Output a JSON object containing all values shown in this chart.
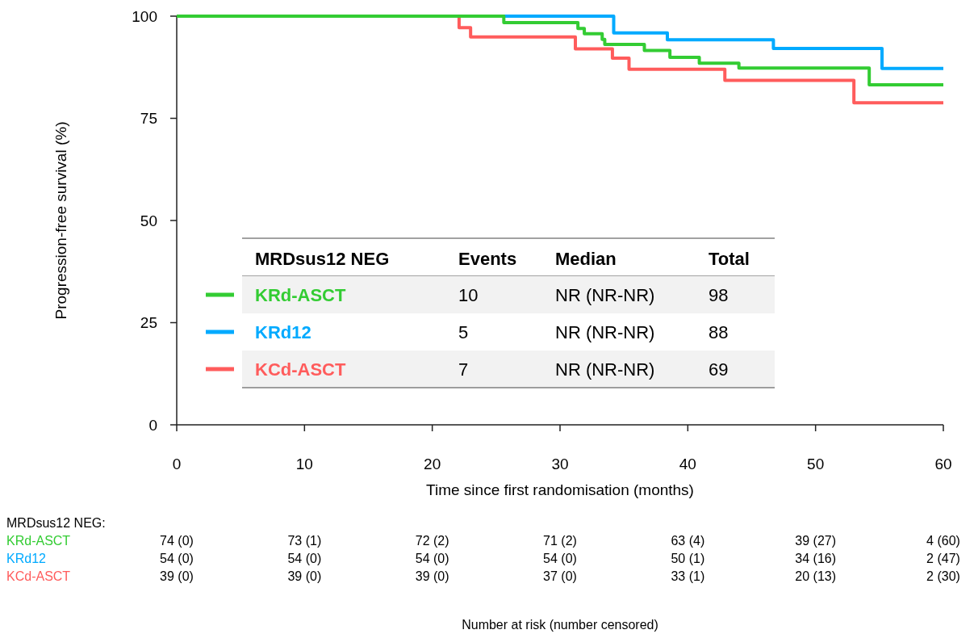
{
  "chart_data": {
    "type": "step",
    "xlabel": "Time since first randomisation (months)",
    "ylabel": "Progression-free survival (%)",
    "xlim": [
      0,
      60
    ],
    "ylim": [
      0,
      100
    ],
    "xticks": [
      0,
      10,
      20,
      30,
      40,
      50,
      60
    ],
    "yticks": [
      0,
      25,
      50,
      75,
      100
    ],
    "grid": false,
    "legend": "bottom",
    "series": [
      {
        "name": "KRd-ASCT",
        "color": "#33cc33",
        "x": [
          0,
          25.6,
          31.4,
          31.9,
          33.3,
          33.5,
          36.6,
          38.6,
          40.9,
          44.0,
          54.2,
          60
        ],
        "values": [
          100,
          98.4,
          97.0,
          95.7,
          94.3,
          93.1,
          91.6,
          89.9,
          88.5,
          87.3,
          83.2,
          83.2
        ]
      },
      {
        "name": "KRd12",
        "color": "#00aaff",
        "x": [
          0,
          34.2,
          38.4,
          46.7,
          55.2,
          60
        ],
        "values": [
          100,
          95.9,
          94.2,
          92.1,
          87.2,
          87.2
        ]
      },
      {
        "name": "KCd-ASCT",
        "color": "#ff5c5c",
        "x": [
          0,
          22.1,
          23.0,
          31.2,
          34.1,
          35.4,
          42.9,
          53.0,
          60
        ],
        "values": [
          100,
          97.2,
          94.9,
          92.0,
          89.7,
          87.0,
          84.3,
          78.8,
          78.8
        ]
      }
    ],
    "annotations": [
      "MRDsus12 NEG",
      "Events",
      "Median",
      "Total",
      "10",
      "NR (NR-NR)",
      "98",
      "5",
      "NR (NR-NR)",
      "88",
      "7",
      "NR (NR-NR)",
      "69",
      "MRDsus12 NEG:",
      "74 (0)",
      "73 (1)",
      "72 (2)",
      "71 (2)",
      "63 (4)",
      "39 (27)",
      "4 (60)",
      "54 (0)",
      "54 (0)",
      "54 (0)",
      "54 (0)",
      "50 (1)",
      "34 (16)",
      "2 (47)",
      "39 (0)",
      "39 (0)",
      "39 (0)",
      "37 (0)",
      "33 (1)",
      "20 (13)",
      "2 (30)",
      "Number at risk (number censored)"
    ]
  }
}
